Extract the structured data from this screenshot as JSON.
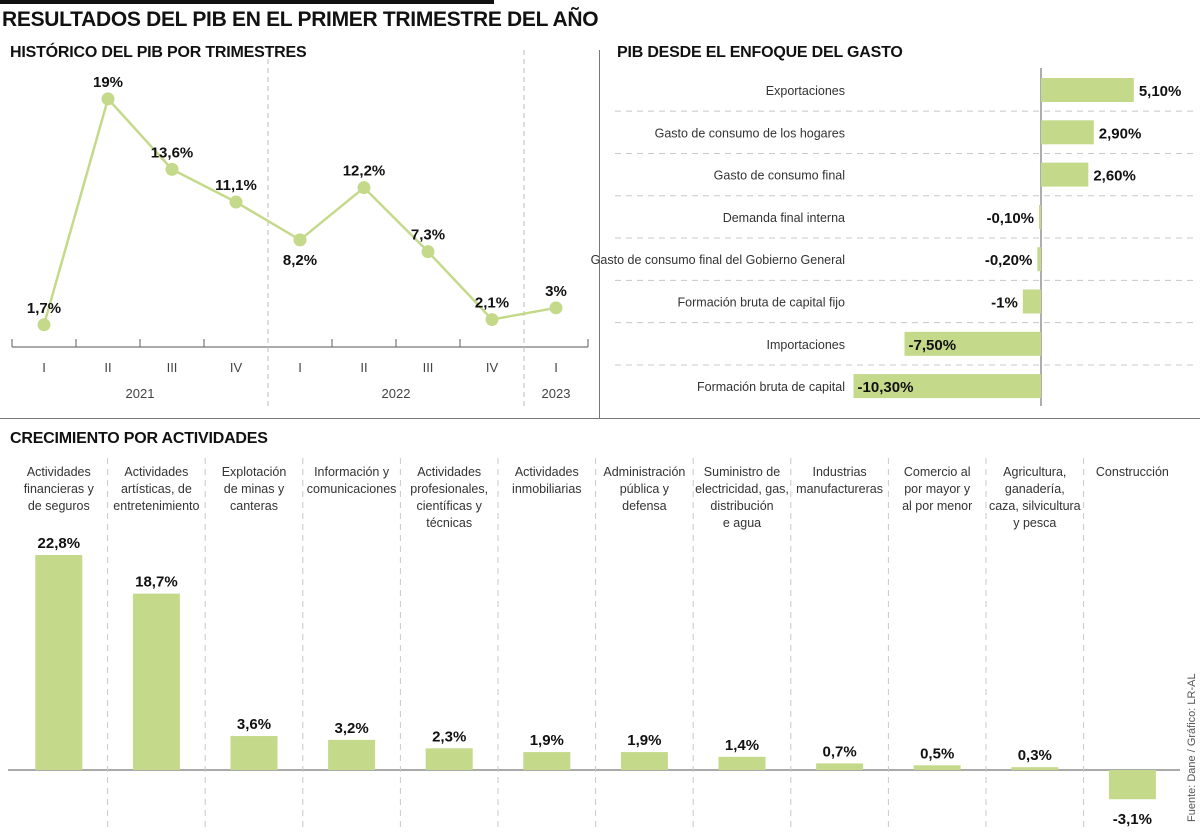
{
  "title": "RESULTADOS DEL PIB EN EL PRIMER TRIMESTRE DEL AÑO",
  "source": "Fuente: Dane / Gráfico: LR-AL",
  "colors": {
    "bar": "#c5d98a",
    "line": "#c5d98a",
    "axis": "#777777",
    "text": "#111111"
  },
  "chart_data": [
    {
      "type": "line",
      "title": "HISTÓRICO DEL PIB POR TRIMESTRES",
      "x": [
        "I",
        "II",
        "III",
        "IV",
        "I",
        "II",
        "III",
        "IV",
        "I"
      ],
      "groups": [
        {
          "label": "2021",
          "count": 4
        },
        {
          "label": "2022",
          "count": 4
        },
        {
          "label": "2023",
          "count": 1
        }
      ],
      "values": [
        1.7,
        19,
        13.6,
        11.1,
        8.2,
        12.2,
        7.3,
        2.1,
        3
      ],
      "labels": [
        "1,7%",
        "19%",
        "13,6%",
        "11,1%",
        "8,2%",
        "12,2%",
        "7,3%",
        "2,1%",
        "3%"
      ],
      "label_below": [
        false,
        false,
        false,
        false,
        true,
        false,
        false,
        false,
        false
      ],
      "xlabel": "",
      "ylabel": "",
      "ylim": [
        0,
        20
      ],
      "grid": false
    },
    {
      "type": "bar",
      "orientation": "horizontal",
      "title": "PIB DESDE EL ENFOQUE DEL GASTO",
      "categories": [
        "Exportaciones",
        "Gasto de consumo de los hogares",
        "Gasto de consumo final",
        "Demanda final interna",
        "Gasto de consumo final del Gobierno General",
        "Formación bruta de capital fijo",
        "Importaciones",
        "Formación bruta de capital"
      ],
      "values": [
        5.1,
        2.9,
        2.6,
        -0.1,
        -0.2,
        -1,
        -7.5,
        -10.3
      ],
      "labels": [
        "5,10%",
        "2,90%",
        "2,60%",
        "-0,10%",
        "-0,20%",
        "-1%",
        "-7,50%",
        "-10,30%"
      ],
      "xlim": [
        -10.5,
        8
      ],
      "grid": true
    },
    {
      "type": "bar",
      "title": "CRECIMIENTO POR ACTIVIDADES",
      "categories": [
        [
          "Actividades",
          "financieras y",
          "de seguros"
        ],
        [
          "Actividades",
          "artísticas, de",
          "entretenimiento"
        ],
        [
          "Explotación",
          "de minas y",
          "canteras"
        ],
        [
          "Información y",
          "comunicaciones"
        ],
        [
          "Actividades",
          "profesionales,",
          "científicas y",
          "técnicas"
        ],
        [
          "Actividades",
          "inmobiliarias"
        ],
        [
          "Administración",
          "pública y",
          "defensa"
        ],
        [
          "Suministro de",
          "electricidad, gas,",
          "distribución",
          "e agua"
        ],
        [
          "Industrias",
          "manufactureras"
        ],
        [
          "Comercio al",
          "por mayor y",
          "al por menor"
        ],
        [
          "Agricultura,",
          "ganadería,",
          "caza, silvicultura",
          "y pesca"
        ],
        [
          "Construcción"
        ]
      ],
      "values": [
        22.8,
        18.7,
        3.6,
        3.2,
        2.3,
        1.9,
        1.9,
        1.4,
        0.7,
        0.5,
        0.3,
        -3.1
      ],
      "labels": [
        "22,8%",
        "18,7%",
        "3,6%",
        "3,2%",
        "2,3%",
        "1,9%",
        "1,9%",
        "1,4%",
        "0,7%",
        "0,5%",
        "0,3%",
        "-3,1%"
      ],
      "ylim": [
        -3.5,
        23
      ],
      "grid": false
    }
  ]
}
